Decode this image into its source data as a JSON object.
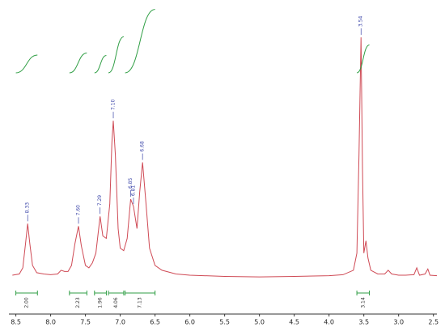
{
  "chart_data": {
    "type": "line",
    "color": "#cf4a55",
    "label_color": "#3a44a8",
    "integral_color": "#2f9e44",
    "xlim": [
      8.6,
      2.45
    ],
    "ylim": [
      0,
      100
    ],
    "xticks": [
      8.5,
      {
        "value": 8,
        "label": "8.0"
      },
      7.5,
      {
        "value": 7,
        "label": "7.0"
      },
      6.5,
      {
        "value": 6,
        "label": "6.0"
      },
      5.5,
      {
        "value": 5,
        "label": "5.0"
      },
      4.5,
      {
        "value": 4,
        "label": "4.0"
      },
      3.5,
      {
        "value": 3,
        "label": "3.0"
      },
      2.5
    ],
    "x": [
      8.55,
      8.45,
      8.4,
      8.36,
      8.33,
      8.3,
      8.26,
      8.2,
      8.1,
      8.0,
      7.9,
      7.85,
      7.8,
      7.75,
      7.7,
      7.65,
      7.6,
      7.56,
      7.5,
      7.45,
      7.4,
      7.35,
      7.29,
      7.25,
      7.2,
      7.15,
      7.12,
      7.1,
      7.07,
      7.03,
      7.0,
      6.95,
      6.9,
      6.85,
      6.81,
      6.76,
      6.72,
      6.68,
      6.63,
      6.58,
      6.5,
      6.4,
      6.2,
      6.0,
      5.5,
      5.0,
      4.5,
      4.0,
      3.8,
      3.65,
      3.6,
      3.57,
      3.54,
      3.52,
      3.5,
      3.47,
      3.44,
      3.4,
      3.3,
      3.2,
      3.15,
      3.1,
      3.0,
      2.9,
      2.78,
      2.74,
      2.7,
      2.62,
      2.58,
      2.55,
      2.45
    ],
    "y": [
      1,
      1.5,
      4,
      14,
      22,
      14,
      5,
      2,
      1.5,
      1.2,
      1.5,
      3,
      2.5,
      2.5,
      5,
      14,
      21,
      13,
      5,
      4,
      6,
      10,
      25,
      17,
      16,
      30,
      55,
      64,
      50,
      20,
      12,
      11,
      16,
      32,
      29,
      20,
      35,
      47,
      30,
      12,
      5,
      3,
      1.5,
      1,
      0.5,
      0.3,
      0.5,
      0.8,
      1.2,
      3,
      10,
      50,
      98,
      45,
      10,
      15,
      8,
      3,
      1.5,
      1.5,
      3,
      1.5,
      1,
      1,
      1.2,
      4,
      1,
      1.5,
      3.5,
      1,
      0.8
    ],
    "peaks": {
      "x": [
        8.33,
        7.6,
        7.29,
        7.1,
        6.85,
        6.81,
        6.68,
        3.54
      ],
      "labels": [
        "8.33",
        "7.60",
        "7.29",
        "7.10",
        "6.85",
        "6.81",
        "6.68",
        "3.54"
      ]
    },
    "integrals": {
      "ranges": [
        [
          8.5,
          8.19
        ],
        [
          7.73,
          7.48
        ],
        [
          7.37,
          7.2
        ],
        [
          7.17,
          6.95
        ],
        [
          6.93,
          6.5
        ],
        [
          3.6,
          3.42
        ]
      ],
      "values": [
        2,
        2.23,
        1.96,
        4.06,
        7.13,
        3.14
      ],
      "value_labels": [
        "2.00",
        "2.23",
        "1.96",
        "4.06",
        "7.13",
        "3.14"
      ]
    }
  }
}
